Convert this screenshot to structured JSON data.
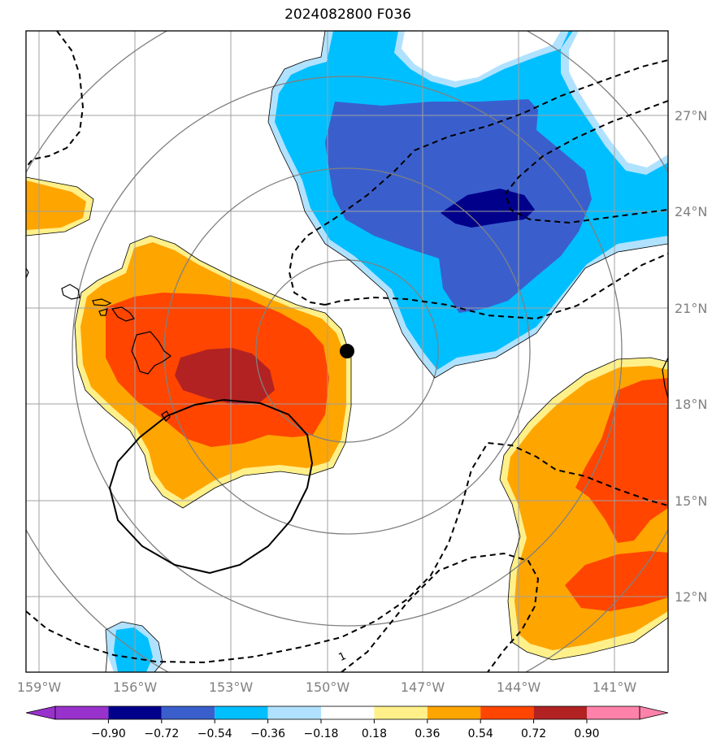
{
  "title": "2024082800 F036",
  "colors": {
    "purple": "#9932cc",
    "navy": "#00008b",
    "royal_blue": "#3a5fcd",
    "deep_sky_blue": "#00bfff",
    "light_blue": "#b0e2ff",
    "light_yellow": "#fff08a",
    "orange": "#ffa500",
    "orange_red": "#ff4500",
    "firebrick": "#b22222",
    "pink": "#ff82ab",
    "grid": "#a0a0a0",
    "range_rings": "#808080"
  },
  "map": {
    "lon_ticks": [
      "159°W",
      "156°W",
      "153°W",
      "150°W",
      "147°W",
      "144°W",
      "141°W"
    ],
    "lat_ticks": [
      "27°N",
      "24°N",
      "21°N",
      "18°N",
      "15°N",
      "12°N"
    ],
    "lon_tick_values": [
      -159,
      -156,
      -153,
      -150,
      -147,
      -144,
      -141
    ],
    "lat_tick_values": [
      27,
      24,
      21,
      18,
      15,
      12
    ],
    "contour_label": "1",
    "center_marker": "storm-center"
  },
  "colorbar": {
    "levels": [
      -0.9,
      -0.72,
      -0.54,
      -0.36,
      -0.18,
      0.18,
      0.36,
      0.54,
      0.72,
      0.9
    ],
    "labels": [
      "−0.90",
      "−0.72",
      "−0.54",
      "−0.36",
      "−0.18",
      "0.18",
      "0.36",
      "0.54",
      "0.72",
      "0.90"
    ],
    "extend": "both"
  }
}
